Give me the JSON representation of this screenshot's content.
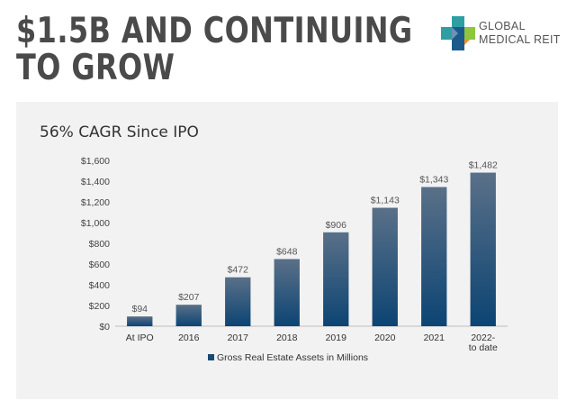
{
  "header": {
    "headline_line1": "$1.5B AND CONTINUING",
    "headline_line2": "TO GROW"
  },
  "logo": {
    "icon": "cross-logo-icon",
    "line1": "GLOBAL",
    "line2": "MEDICAL REIT",
    "colors": [
      "#2d9fa3",
      "#1d5a8c",
      "#8ec63f",
      "#f7941d"
    ]
  },
  "chart_data": {
    "type": "bar",
    "title": "56% CAGR Since IPO",
    "categories": [
      "At IPO",
      "2016",
      "2017",
      "2018",
      "2019",
      "2020",
      "2021",
      "2022-to date"
    ],
    "series": [
      {
        "name": "Gross Real Estate Assets in Millions",
        "values": [
          94,
          207,
          472,
          648,
          906,
          1143,
          1343,
          1482
        ],
        "labels": [
          "$94",
          "$207",
          "$472",
          "$648",
          "$906",
          "$1,143",
          "$1,343",
          "$1,482"
        ],
        "color_top": "#5a7088",
        "color_bottom": "#0c4473"
      }
    ],
    "y_ticks": [
      0,
      200,
      400,
      600,
      800,
      1000,
      1200,
      1400,
      1600
    ],
    "y_tick_labels": [
      "$0",
      "$200",
      "$400",
      "$600",
      "$800",
      "$1,000",
      "$1,200",
      "$1,400",
      "$1,600"
    ],
    "ylim": [
      0,
      1600
    ],
    "xlabel": "",
    "ylabel": "",
    "grid": false,
    "legend_position": "bottom"
  }
}
